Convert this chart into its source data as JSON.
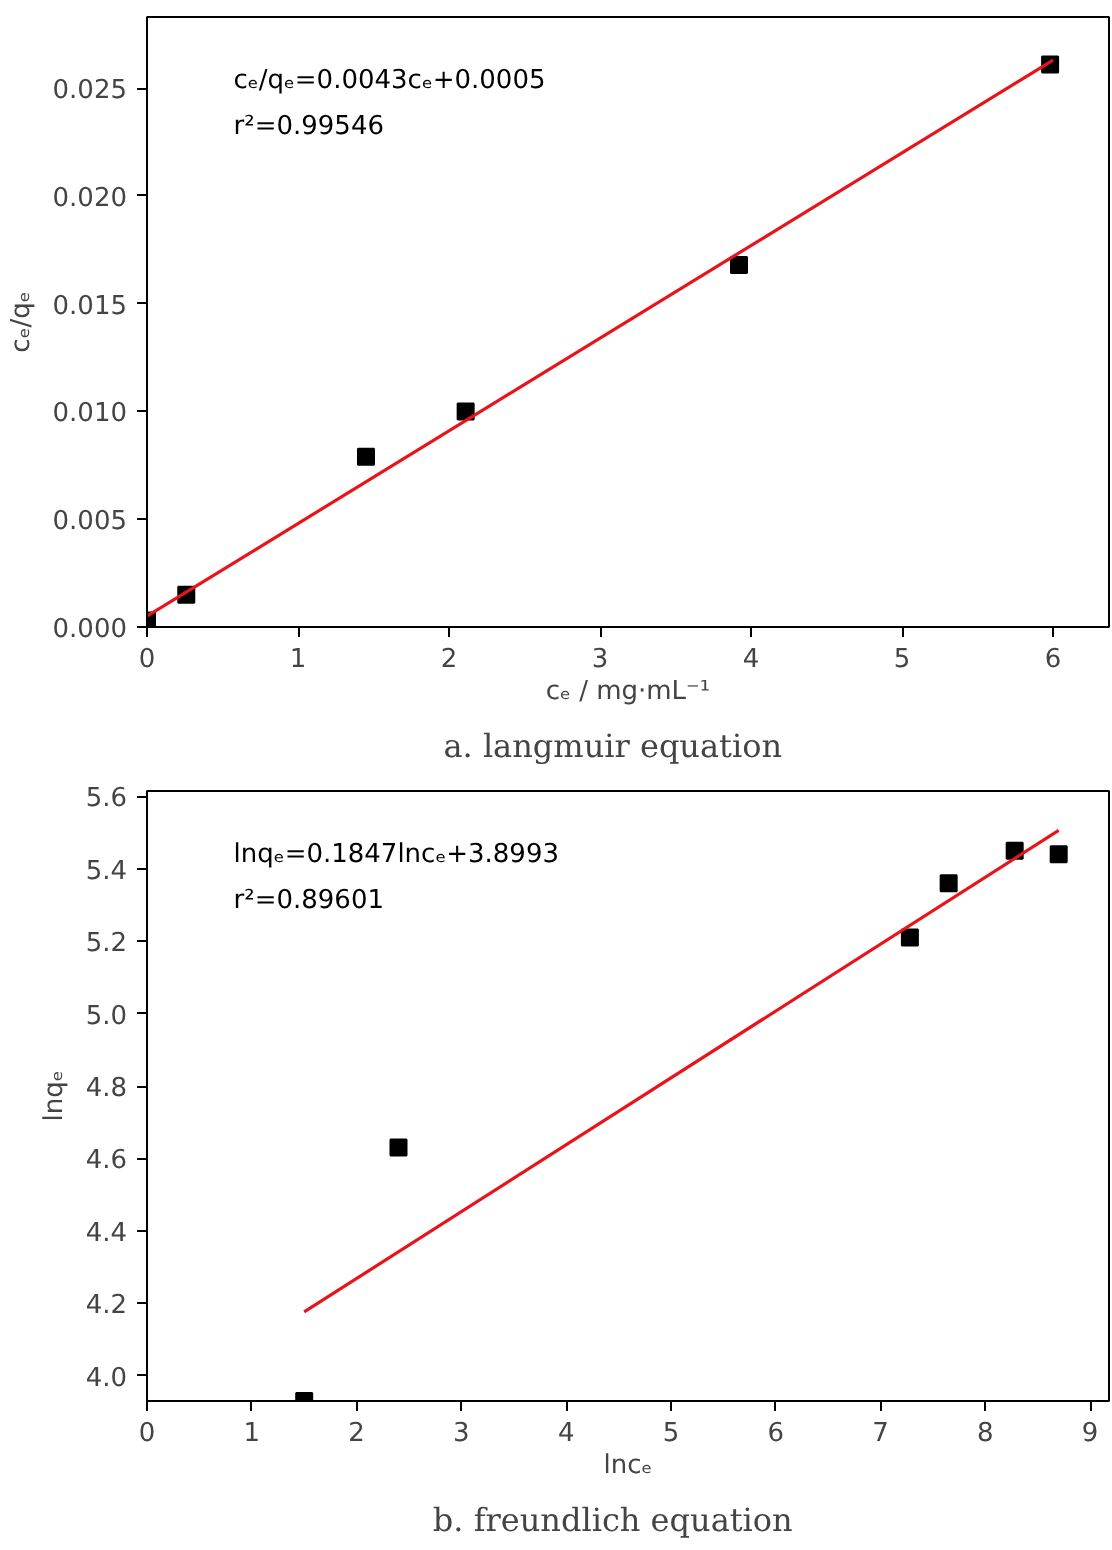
{
  "chart_data": [
    {
      "type": "scatter",
      "title": "a.    langmuir equation",
      "xlabel": "cₑ / mg·mL⁻¹",
      "ylabel": "cₑ/qₑ",
      "annotations": [
        "cₑ/qₑ=0.0043cₑ+0.0005",
        "r²=0.99546"
      ],
      "xlim": [
        0,
        6.37
      ],
      "ylim": [
        0,
        0.0283
      ],
      "xticks": [
        0,
        1,
        2,
        3,
        4,
        5,
        6
      ],
      "yticks": [
        {
          "value": 0,
          "label": "0.000"
        },
        {
          "value": 0.005,
          "label": "0.005"
        },
        {
          "value": 0.01,
          "label": "0.010"
        },
        {
          "value": 0.015,
          "label": "0.015"
        },
        {
          "value": 0.02,
          "label": "0.020"
        },
        {
          "value": 0.025,
          "label": "0.025"
        }
      ],
      "grid": false,
      "series": [
        {
          "marker": "square",
          "color": "#000000",
          "x": [
            0,
            0.26,
            1.45,
            2.11,
            3.92,
            5.98
          ],
          "values": [
            0.0003,
            0.0015,
            0.0079,
            0.01,
            0.0168,
            0.0261
          ]
        },
        {
          "type": "line",
          "line_style": "solid",
          "marker": "none",
          "color": "#e8141c",
          "x": [
            0,
            6
          ],
          "values": [
            0.0005,
            0.0263
          ]
        }
      ]
    },
    {
      "type": "scatter",
      "title": "b.    freundlich equation",
      "xlabel": "lncₑ",
      "ylabel": "lnqₑ",
      "annotations": [
        "lnqₑ=0.1847lncₑ+3.8993",
        "r²=0.89601"
      ],
      "xlim": [
        0,
        9.18
      ],
      "ylim": [
        3.93,
        5.615
      ],
      "xticks": [
        0,
        1,
        2,
        3,
        4,
        5,
        6,
        7,
        8,
        9
      ],
      "yticks": [
        {
          "value": 4.0,
          "label": "4.0"
        },
        {
          "value": 4.2,
          "label": "4.2"
        },
        {
          "value": 4.4,
          "label": "4.4"
        },
        {
          "value": 4.6,
          "label": "4.6"
        },
        {
          "value": 4.8,
          "label": "4.8"
        },
        {
          "value": 5.0,
          "label": "5.0"
        },
        {
          "value": 5.2,
          "label": "5.2"
        },
        {
          "value": 5.4,
          "label": "5.4"
        },
        {
          "value": 5.6,
          "label": "5.6"
        }
      ],
      "grid": false,
      "series": [
        {
          "marker": "square",
          "color": "#000000",
          "x": [
            1.5,
            2.4,
            7.28,
            7.65,
            8.28,
            8.7
          ],
          "values": [
            3.93,
            4.63,
            5.21,
            5.36,
            5.45,
            5.44
          ]
        },
        {
          "type": "line",
          "line_style": "solid",
          "marker": "none",
          "color": "#e8141c",
          "x": [
            1.5,
            8.7
          ],
          "values": [
            4.176,
            5.506
          ]
        }
      ]
    }
  ]
}
